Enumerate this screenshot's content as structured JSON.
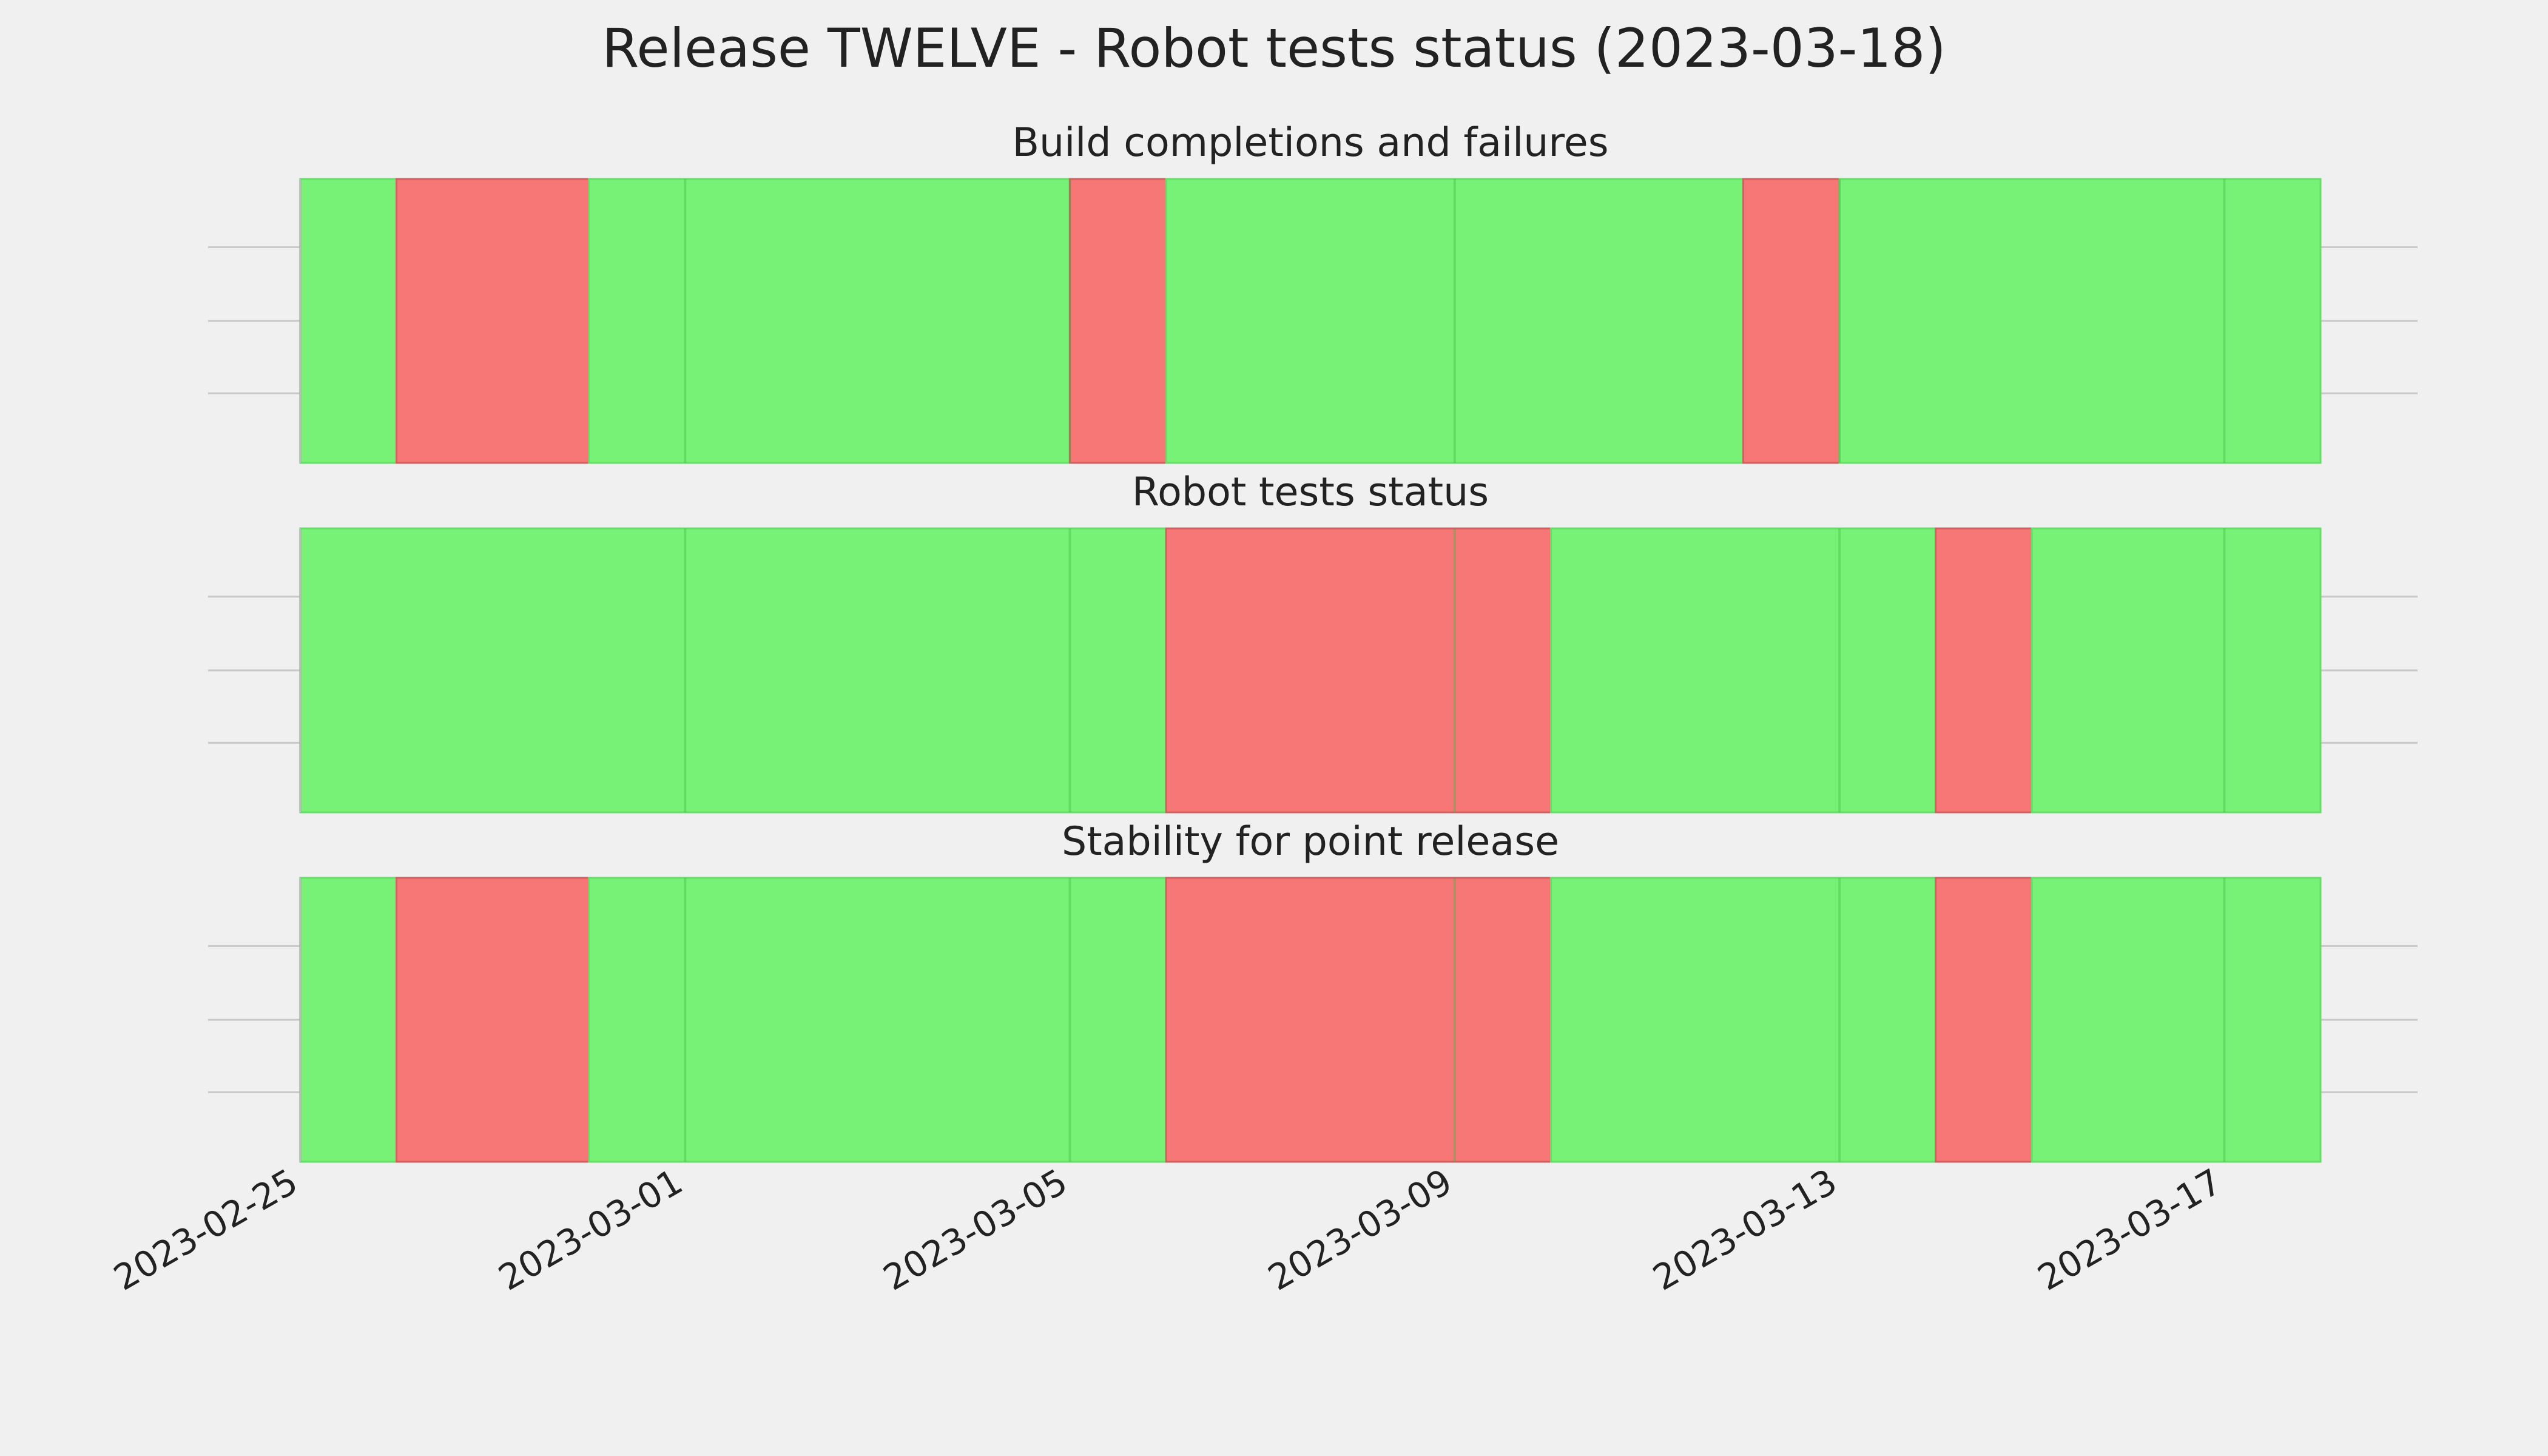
{
  "chart_data": {
    "type": "timeline",
    "title": "Release TWELVE - Robot tests status (2023-03-18)",
    "x_ticks": [
      "2023-02-25",
      "2023-03-01",
      "2023-03-05",
      "2023-03-09",
      "2023-03-13",
      "2023-03-17"
    ],
    "x_range": [
      "2023-02-25",
      "2023-03-18"
    ],
    "grid": true,
    "colors": {
      "pass": "#77f277",
      "fail": "#f77777",
      "background": "#f0f0f0"
    },
    "panels": [
      {
        "title": "Build completions and failures",
        "segments": [
          {
            "start": "2023-02-25",
            "end": "2023-02-26",
            "status": "pass"
          },
          {
            "start": "2023-02-26",
            "end": "2023-02-28",
            "status": "fail"
          },
          {
            "start": "2023-02-28",
            "end": "2023-03-05",
            "status": "pass"
          },
          {
            "start": "2023-03-05",
            "end": "2023-03-06",
            "status": "fail"
          },
          {
            "start": "2023-03-06",
            "end": "2023-03-12",
            "status": "pass"
          },
          {
            "start": "2023-03-12",
            "end": "2023-03-13",
            "status": "fail"
          },
          {
            "start": "2023-03-13",
            "end": "2023-03-18",
            "status": "pass"
          }
        ]
      },
      {
        "title": "Robot tests status",
        "segments": [
          {
            "start": "2023-02-25",
            "end": "2023-03-06",
            "status": "pass"
          },
          {
            "start": "2023-03-06",
            "end": "2023-03-10",
            "status": "fail"
          },
          {
            "start": "2023-03-10",
            "end": "2023-03-14",
            "status": "pass"
          },
          {
            "start": "2023-03-14",
            "end": "2023-03-15",
            "status": "fail"
          },
          {
            "start": "2023-03-15",
            "end": "2023-03-18",
            "status": "pass"
          }
        ]
      },
      {
        "title": "Stability for point release",
        "segments": [
          {
            "start": "2023-02-25",
            "end": "2023-02-26",
            "status": "pass"
          },
          {
            "start": "2023-02-26",
            "end": "2023-02-28",
            "status": "fail"
          },
          {
            "start": "2023-02-28",
            "end": "2023-03-06",
            "status": "pass"
          },
          {
            "start": "2023-03-06",
            "end": "2023-03-10",
            "status": "fail"
          },
          {
            "start": "2023-03-10",
            "end": "2023-03-14",
            "status": "pass"
          },
          {
            "start": "2023-03-14",
            "end": "2023-03-15",
            "status": "fail"
          },
          {
            "start": "2023-03-15",
            "end": "2023-03-18",
            "status": "pass"
          }
        ]
      }
    ]
  }
}
